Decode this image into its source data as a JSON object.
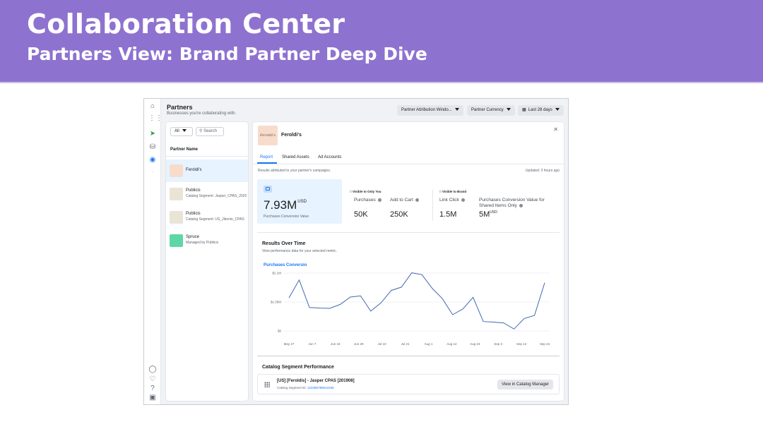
{
  "slide": {
    "title": "Collaboration Center",
    "subtitle": "Partners View: Brand Partner Deep Dive"
  },
  "header": {
    "title": "Partners",
    "subtitle": "Businesses you're collaborating with.",
    "attribution_label": "Partner Attribution Windo...",
    "currency_label": "Partner Currency",
    "date_label": "Last 28 days"
  },
  "partner_list": {
    "filter_label": "All",
    "search_placeholder": "Search",
    "column_header": "Partner Name",
    "items": [
      {
        "name": "Feroldi's",
        "description": "",
        "logo_color": "#f7dccb",
        "selected": true
      },
      {
        "name": "Publicis",
        "description": "Catalog Segment: Jasper_CPAS_2020",
        "logo_color": "#e9e4d6",
        "selected": false
      },
      {
        "name": "Publicis",
        "description": "Catalog Segment: US_Jikenio_CPAS",
        "logo_color": "#e9e4d6",
        "selected": false
      },
      {
        "name": "Spruce",
        "description": "Managed by Publicis",
        "logo_color": "#5fd6a8",
        "selected": false
      }
    ]
  },
  "detail": {
    "partner_name": "Feroldi's",
    "logo_text": "Feroldi's",
    "tabs": [
      "Report",
      "Shared Assets",
      "Ad Accounts"
    ],
    "active_tab": 0,
    "note": "Results attributed to your partner's campaigns.",
    "updated": "Updated: 3 hours ago",
    "main_metric": {
      "value": "7.93M",
      "unit": "USD",
      "label": "Purchases Conversion Value"
    },
    "visible_only_you": "Visible to Only You",
    "visible_brand": "Visible to Brand",
    "metrics": [
      {
        "label": "Purchases",
        "value": "50K",
        "unit": ""
      },
      {
        "label": "Add to Cart",
        "value": "250K",
        "unit": ""
      },
      {
        "label": "Link Click",
        "value": "1.5M",
        "unit": ""
      },
      {
        "label": "Purchases Conversion Value for Shared Items Only",
        "value": "5M",
        "unit": "USD"
      }
    ]
  },
  "results": {
    "title": "Results Over Time",
    "subtitle": "View performance data for your selected metric.",
    "series_label": "Purchases Conversio"
  },
  "chart_data": {
    "type": "line",
    "title": "Results Over Time",
    "xlabel": "",
    "ylabel": "",
    "ylim": [
      0,
      2100000
    ],
    "y_tick_labels": [
      "$0",
      "$1.05M",
      "$2.1M"
    ],
    "y_tick_values": [
      0,
      1050000,
      2100000
    ],
    "x_tick_labels": [
      "May 27",
      "Jun 7",
      "Jun 18",
      "Jun 29",
      "Jul 10",
      "Jul 21",
      "Aug 1",
      "Aug 12",
      "Aug 23",
      "Sep 3",
      "Sep 14",
      "Sep 24"
    ],
    "series": [
      {
        "name": "Purchases Conversio",
        "color": "#4267b2",
        "values": [
          1200000,
          1850000,
          850000,
          830000,
          820000,
          960000,
          1230000,
          1270000,
          720000,
          1020000,
          1470000,
          1590000,
          2110000,
          2040000,
          1550000,
          1170000,
          590000,
          800000,
          1220000,
          340000,
          320000,
          290000,
          70000,
          450000,
          560000,
          1750000
        ]
      }
    ],
    "grid": true,
    "legend": "none"
  },
  "catalog": {
    "title": "Catalog Segment Performance",
    "segment_name": "[US] [Feroldis] - Jasper CPAS [201908]",
    "segment_id_label": "Catalog Segment ID:",
    "segment_id": "123456789012345",
    "button_label": "View in Catalog Manager"
  }
}
